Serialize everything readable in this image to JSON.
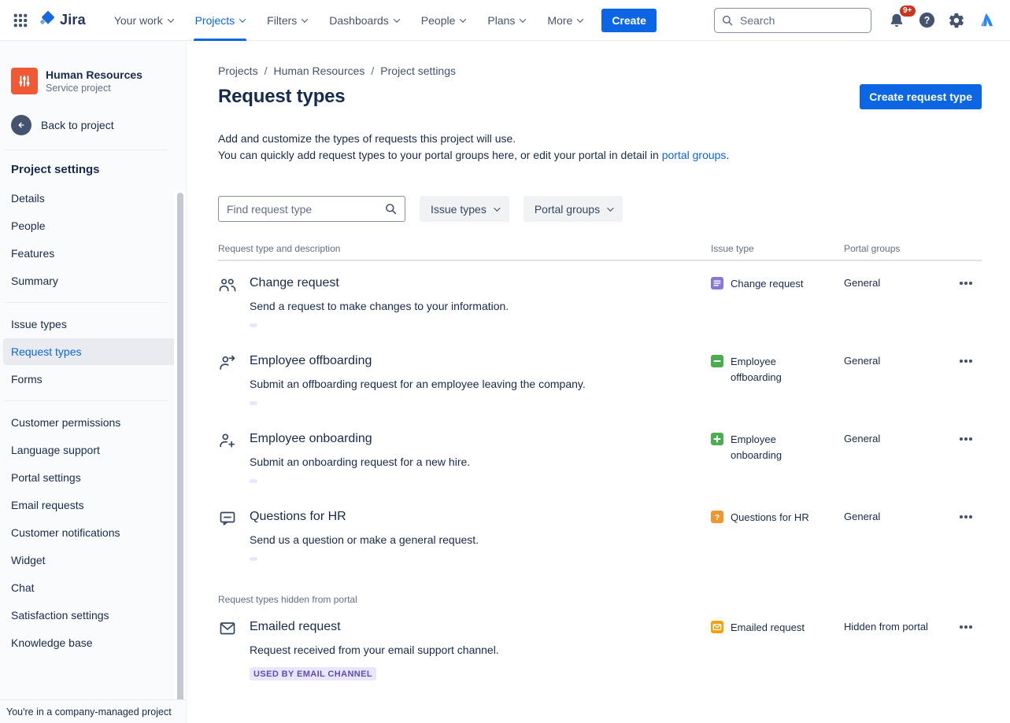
{
  "nav": {
    "logo_text": "Jira",
    "items": [
      {
        "label": "Your work"
      },
      {
        "label": "Projects",
        "active": true
      },
      {
        "label": "Filters"
      },
      {
        "label": "Dashboards"
      },
      {
        "label": "People"
      },
      {
        "label": "Plans"
      },
      {
        "label": "More"
      }
    ],
    "create_label": "Create",
    "search_placeholder": "Search",
    "notifications_badge": "9+",
    "right_icons": [
      "notifications-bell-icon",
      "help-icon",
      "settings-gear-icon",
      "atlassian-logo-icon"
    ]
  },
  "sidebar": {
    "project": {
      "name": "Human Resources",
      "type": "Service project",
      "avatar_color": "#EE5A35",
      "avatar_icon": "sliders-icon"
    },
    "back_label": "Back to project",
    "heading": "Project settings",
    "sections": [
      {
        "items": [
          {
            "label": "Details"
          },
          {
            "label": "People"
          },
          {
            "label": "Features"
          },
          {
            "label": "Summary"
          }
        ]
      },
      {
        "items": [
          {
            "label": "Issue types"
          },
          {
            "label": "Request types",
            "active": true
          },
          {
            "label": "Forms"
          }
        ]
      },
      {
        "items": [
          {
            "label": "Customer permissions"
          },
          {
            "label": "Language support"
          },
          {
            "label": "Portal settings"
          },
          {
            "label": "Email requests"
          },
          {
            "label": "Customer notifications"
          },
          {
            "label": "Widget"
          },
          {
            "label": "Chat"
          },
          {
            "label": "Satisfaction settings"
          },
          {
            "label": "Knowledge base"
          }
        ]
      }
    ],
    "footer": "You're in a company-managed project"
  },
  "main": {
    "breadcrumb": [
      "Projects",
      "Human Resources",
      "Project settings"
    ],
    "title": "Request types",
    "create_button": "Create request type",
    "description_line1": "Add and customize the types of requests this project will use.",
    "description_line2_prefix": "You can quickly add request types to your portal groups here, or edit your portal in detail in ",
    "description_link": "portal groups",
    "description_suffix": ".",
    "filters": {
      "search_placeholder": "Find request type",
      "issue_types_label": "Issue types",
      "portal_groups_label": "Portal groups"
    },
    "table": {
      "headers": [
        "Request type and description",
        "Issue type",
        "Portal groups"
      ],
      "rows": [
        {
          "name": "Change request",
          "description": "Send a request to make changes to your information.",
          "type_icon": "people-group-icon",
          "issue_type": "Change request",
          "issue_icon": "document",
          "issue_color": "#8777D9",
          "portal_group": "General"
        },
        {
          "name": "Employee offboarding",
          "description": "Submit an offboarding request for an employee leaving the company.",
          "type_icon": "person-arrow-right-icon",
          "issue_type": "Employee offboarding",
          "issue_icon": "minus",
          "issue_color": "#4BAD52",
          "portal_group": "General"
        },
        {
          "name": "Employee onboarding",
          "description": "Submit an onboarding request for a new hire.",
          "type_icon": "person-plus-icon",
          "issue_type": "Employee onboarding",
          "issue_icon": "plus",
          "issue_color": "#4BAD52",
          "portal_group": "General"
        },
        {
          "name": "Questions for HR",
          "description": "Send us a question or make a general request.",
          "type_icon": "speech-bubble-icon",
          "issue_type": "Questions for HR",
          "issue_icon": "question",
          "issue_color": "#EF962F",
          "portal_group": "General"
        }
      ],
      "hidden_section_label": "Request types hidden from portal",
      "hidden_rows": [
        {
          "name": "Emailed request",
          "description": "Request received from your email support channel.",
          "badge": "USED BY EMAIL CHANNEL",
          "type_icon": "envelope-icon",
          "issue_type": "Emailed request",
          "issue_icon": "envelope",
          "issue_color": "#F0A30E",
          "portal_group": "Hidden from portal"
        }
      ]
    }
  },
  "colors": {
    "accent": "#0C66E4",
    "badge_bg": "#EAE6FF",
    "badge_text": "#5E4DB2",
    "avatar": "#EE5A35",
    "notification": "#CA3521"
  }
}
